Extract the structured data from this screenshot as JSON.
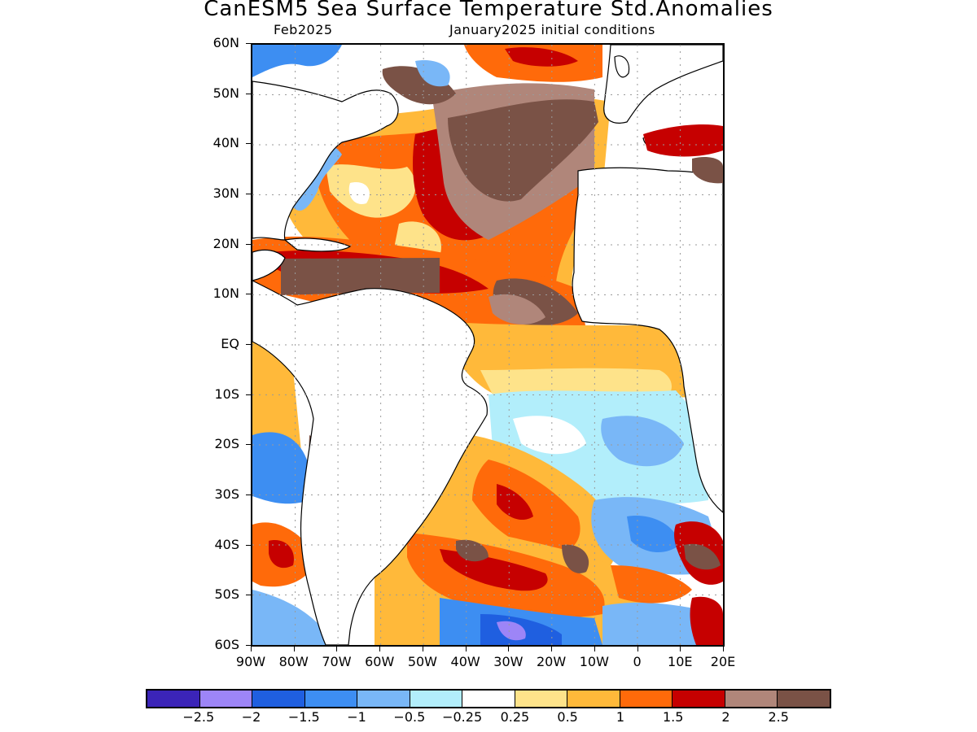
{
  "title": "CanESM5 Sea Surface Temperature Std.Anomalies",
  "subtitle_left": "Feb2025",
  "subtitle_right": "January2025 initial conditions",
  "lat_labels": [
    "60N",
    "50N",
    "40N",
    "30N",
    "20N",
    "10N",
    "EQ",
    "10S",
    "20S",
    "30S",
    "40S",
    "50S",
    "60S"
  ],
  "lon_labels": [
    "90W",
    "80W",
    "70W",
    "60W",
    "50W",
    "40W",
    "30W",
    "20W",
    "10W",
    "0",
    "10E",
    "20E"
  ],
  "colorbar": {
    "colors": [
      "#3b24b8",
      "#9d85f7",
      "#1f5fe0",
      "#3d8ef2",
      "#79b7f7",
      "#b2eefb",
      "#ffffff",
      "#fee38a",
      "#ffb93a",
      "#ff6a0a",
      "#c60000",
      "#b0867a",
      "#7a5246"
    ],
    "labels": [
      "−2.5",
      "−2",
      "−1.5",
      "−1",
      "−0.5",
      "−0.25",
      "0.25",
      "0.5",
      "1",
      "1.5",
      "2",
      "2.5"
    ]
  },
  "map_colors": {
    "land": "#ffffff",
    "coast": "#000000",
    "grid": "#9a9a9a"
  }
}
